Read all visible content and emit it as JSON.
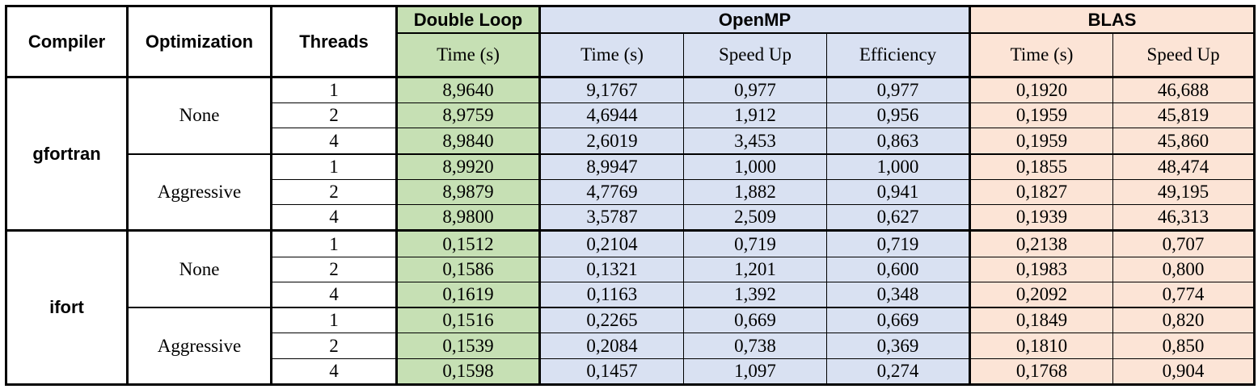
{
  "headers": {
    "compiler": "Compiler",
    "optimization": "Optimization",
    "threads": "Threads",
    "double_loop": "Double Loop",
    "openmp": "OpenMP",
    "blas": "BLAS",
    "time": "Time (s)",
    "speed_up": "Speed Up",
    "efficiency": "Efficiency"
  },
  "colors": {
    "double_loop": "#c6e0b4",
    "openmp": "#d9e1f2",
    "blas": "#fce4d6"
  },
  "groups": [
    {
      "compiler": "gfortran",
      "optimizations": [
        {
          "name": "None",
          "rows": [
            {
              "threads": "1",
              "dl_time": "8,9640",
              "omp_time": "9,1767",
              "omp_speedup": "0,977",
              "omp_eff": "0,977",
              "blas_time": "0,1920",
              "blas_speedup": "46,688"
            },
            {
              "threads": "2",
              "dl_time": "8,9759",
              "omp_time": "4,6944",
              "omp_speedup": "1,912",
              "omp_eff": "0,956",
              "blas_time": "0,1959",
              "blas_speedup": "45,819"
            },
            {
              "threads": "4",
              "dl_time": "8,9840",
              "omp_time": "2,6019",
              "omp_speedup": "3,453",
              "omp_eff": "0,863",
              "blas_time": "0,1959",
              "blas_speedup": "45,860"
            }
          ]
        },
        {
          "name": "Aggressive",
          "rows": [
            {
              "threads": "1",
              "dl_time": "8,9920",
              "omp_time": "8,9947",
              "omp_speedup": "1,000",
              "omp_eff": "1,000",
              "blas_time": "0,1855",
              "blas_speedup": "48,474"
            },
            {
              "threads": "2",
              "dl_time": "8,9879",
              "omp_time": "4,7769",
              "omp_speedup": "1,882",
              "omp_eff": "0,941",
              "blas_time": "0,1827",
              "blas_speedup": "49,195"
            },
            {
              "threads": "4",
              "dl_time": "8,9800",
              "omp_time": "3,5787",
              "omp_speedup": "2,509",
              "omp_eff": "0,627",
              "blas_time": "0,1939",
              "blas_speedup": "46,313"
            }
          ]
        }
      ]
    },
    {
      "compiler": "ifort",
      "optimizations": [
        {
          "name": "None",
          "rows": [
            {
              "threads": "1",
              "dl_time": "0,1512",
              "omp_time": "0,2104",
              "omp_speedup": "0,719",
              "omp_eff": "0,719",
              "blas_time": "0,2138",
              "blas_speedup": "0,707"
            },
            {
              "threads": "2",
              "dl_time": "0,1586",
              "omp_time": "0,1321",
              "omp_speedup": "1,201",
              "omp_eff": "0,600",
              "blas_time": "0,1983",
              "blas_speedup": "0,800"
            },
            {
              "threads": "4",
              "dl_time": "0,1619",
              "omp_time": "0,1163",
              "omp_speedup": "1,392",
              "omp_eff": "0,348",
              "blas_time": "0,2092",
              "blas_speedup": "0,774"
            }
          ]
        },
        {
          "name": "Aggressive",
          "rows": [
            {
              "threads": "1",
              "dl_time": "0,1516",
              "omp_time": "0,2265",
              "omp_speedup": "0,669",
              "omp_eff": "0,669",
              "blas_time": "0,1849",
              "blas_speedup": "0,820"
            },
            {
              "threads": "2",
              "dl_time": "0,1539",
              "omp_time": "0,2084",
              "omp_speedup": "0,738",
              "omp_eff": "0,369",
              "blas_time": "0,1810",
              "blas_speedup": "0,850"
            },
            {
              "threads": "4",
              "dl_time": "0,1598",
              "omp_time": "0,1457",
              "omp_speedup": "1,097",
              "omp_eff": "0,274",
              "blas_time": "0,1768",
              "blas_speedup": "0,904"
            }
          ]
        }
      ]
    }
  ]
}
